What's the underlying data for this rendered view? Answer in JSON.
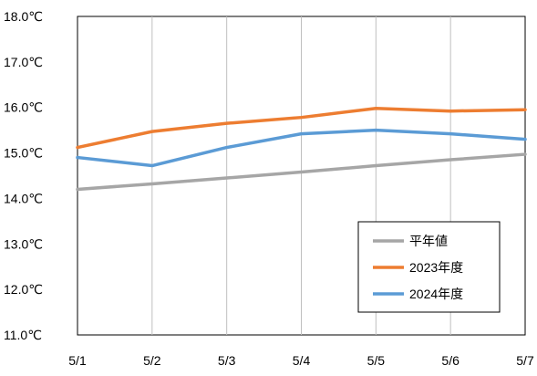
{
  "chart_data": {
    "type": "line",
    "title": "",
    "xlabel": "",
    "ylabel": "",
    "categories": [
      "5/1",
      "5/2",
      "5/3",
      "5/4",
      "5/5",
      "5/6",
      "5/7"
    ],
    "y_tick_labels": [
      "11.0℃",
      "12.0℃",
      "13.0℃",
      "14.0℃",
      "15.0℃",
      "16.0℃",
      "17.0℃",
      "18.0℃"
    ],
    "ylim": [
      11.0,
      18.0
    ],
    "grid": "vertical",
    "legend_position": "bottom-right",
    "series": [
      {
        "name": "平年値",
        "color": "#a6a6a6",
        "values": [
          14.2,
          14.32,
          14.45,
          14.58,
          14.72,
          14.85,
          14.97
        ]
      },
      {
        "name": "2023年度",
        "color": "#ed7d31",
        "values": [
          15.12,
          15.47,
          15.65,
          15.78,
          15.98,
          15.92,
          15.95
        ]
      },
      {
        "name": "2024年度",
        "color": "#5b9bd5",
        "values": [
          14.9,
          14.72,
          15.12,
          15.42,
          15.5,
          15.42,
          15.3
        ]
      }
    ]
  }
}
